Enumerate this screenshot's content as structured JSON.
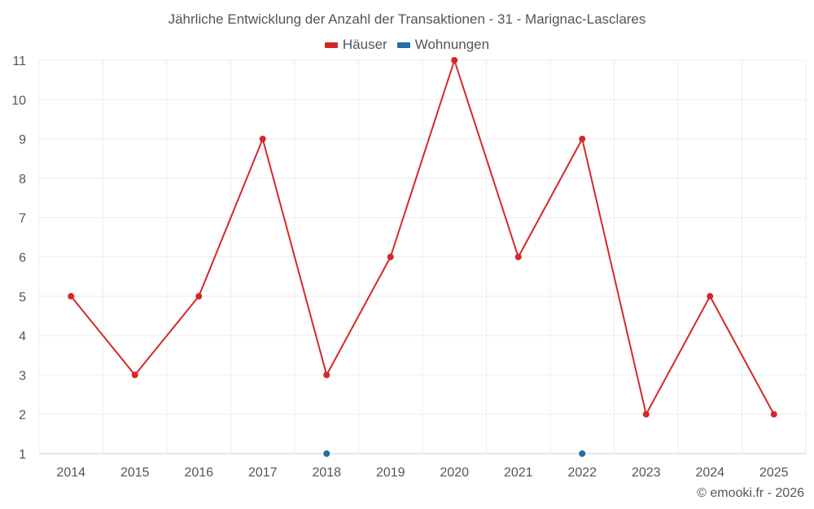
{
  "chart_data": {
    "type": "line",
    "title": "Jährliche Entwicklung der Anzahl der Transaktionen - 31 - Marignac-Lasclares",
    "categories": [
      "2014",
      "2015",
      "2016",
      "2017",
      "2018",
      "2019",
      "2020",
      "2021",
      "2022",
      "2023",
      "2024",
      "2025"
    ],
    "series": [
      {
        "name": "Häuser",
        "color": "#d62728",
        "values": [
          5,
          3,
          5,
          9,
          3,
          6,
          11,
          6,
          9,
          2,
          5,
          2
        ]
      },
      {
        "name": "Wohnungen",
        "color": "#1f6fa8",
        "values": [
          null,
          null,
          null,
          null,
          1,
          null,
          null,
          null,
          1,
          null,
          null,
          null
        ]
      }
    ],
    "ylim": [
      1,
      11
    ],
    "yticks": [
      1,
      2,
      3,
      4,
      5,
      6,
      7,
      8,
      9,
      10,
      11
    ],
    "grid": true,
    "legend_position": "top-center"
  },
  "credit": "© emooki.fr - 2026"
}
